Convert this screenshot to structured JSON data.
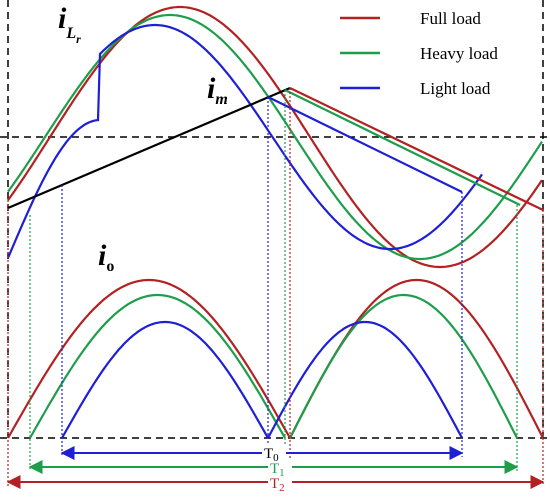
{
  "legend": [
    {
      "label": "Full load",
      "color": "#b22222"
    },
    {
      "label": "Heavy load",
      "color": "#1e9e4a"
    },
    {
      "label": "Light load",
      "color": "#1f1fd6"
    }
  ],
  "curve_labels": {
    "resonant_current": {
      "main": "i",
      "sub": "L",
      "subsub": "r"
    },
    "magnetizing_current": {
      "main": "i",
      "sub": "m"
    },
    "output_current": {
      "main": "i",
      "sub": "o"
    }
  },
  "periods": [
    {
      "main": "T",
      "sub": "0"
    },
    {
      "main": "T",
      "sub": "1"
    },
    {
      "main": "T",
      "sub": "2"
    }
  ]
}
